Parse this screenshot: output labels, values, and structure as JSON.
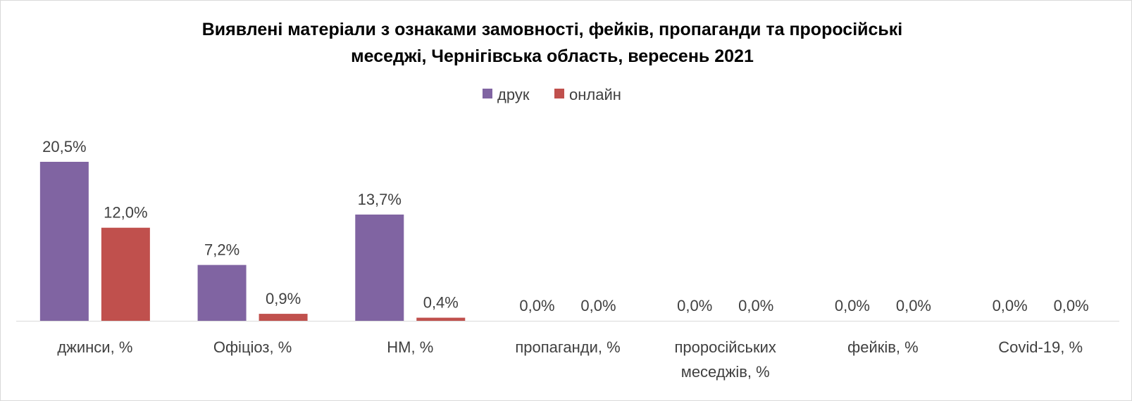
{
  "chart_data": {
    "type": "bar",
    "title_lines": [
      "Виявлені матеріали з ознаками замовності, фейків, пропаганди та проросійські",
      "меседжі, Чернігівська область, вересень 2021"
    ],
    "categories": [
      [
        "джинси, %"
      ],
      [
        "Офіціоз, %"
      ],
      [
        "НМ, %"
      ],
      [
        "пропаганди, %"
      ],
      [
        "проросійських",
        "меседжів, %"
      ],
      [
        "фейків, %"
      ],
      [
        "Covid-19, %"
      ]
    ],
    "series": [
      {
        "name": "друк",
        "color": "#8064a2",
        "values": [
          20.5,
          7.2,
          13.7,
          0.0,
          0.0,
          0.0,
          0.0
        ],
        "labels": [
          "20,5%",
          "7,2%",
          "13,7%",
          "0,0%",
          "0,0%",
          "0,0%",
          "0,0%"
        ]
      },
      {
        "name": "онлайн",
        "color": "#c0504d",
        "values": [
          12.0,
          0.9,
          0.4,
          0.0,
          0.0,
          0.0,
          0.0
        ],
        "labels": [
          "12,0%",
          "0,9%",
          "0,4%",
          "0,0%",
          "0,0%",
          "0,0%",
          "0,0%"
        ]
      }
    ],
    "ylim": [
      0,
      20.5
    ],
    "legend_position": "top",
    "grid": false,
    "axis_color": "#d9d9d9"
  }
}
